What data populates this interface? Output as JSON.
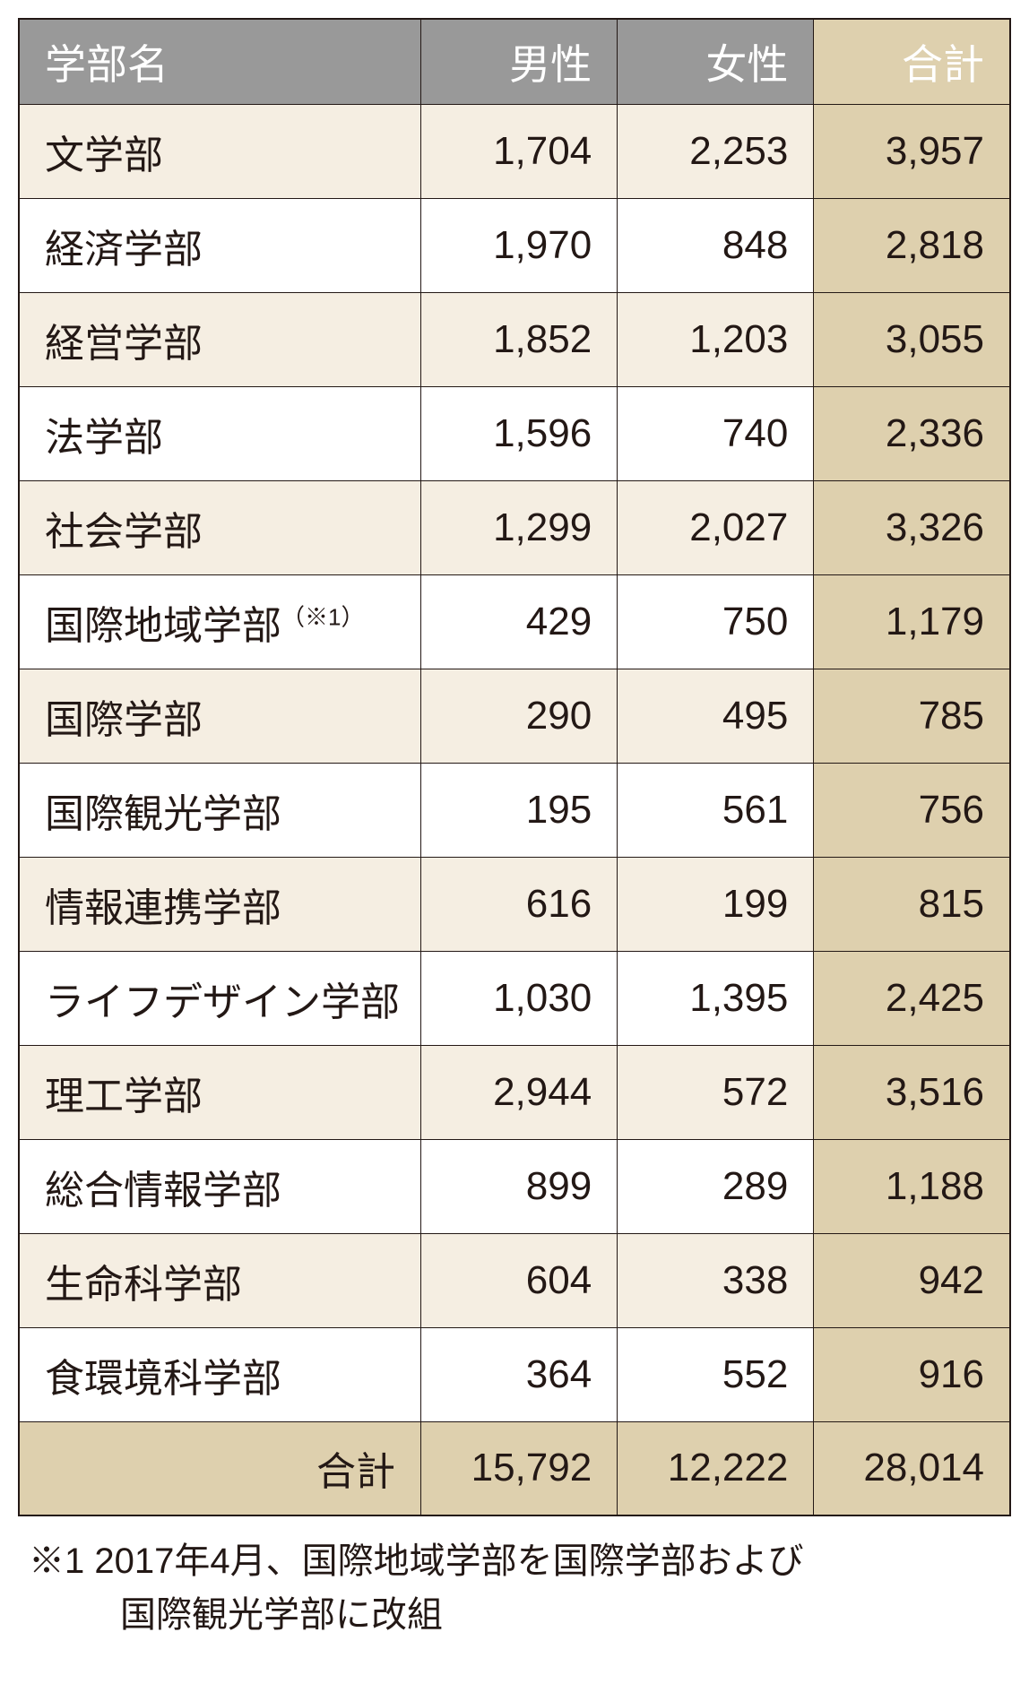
{
  "table": {
    "headers": {
      "name": "学部名",
      "male": "男性",
      "female": "女性",
      "total": "合計"
    },
    "rows": [
      {
        "name": "文学部",
        "male": "1,704",
        "female": "2,253",
        "total": "3,957",
        "note": ""
      },
      {
        "name": "経済学部",
        "male": "1,970",
        "female": "848",
        "total": "2,818",
        "note": ""
      },
      {
        "name": "経営学部",
        "male": "1,852",
        "female": "1,203",
        "total": "3,055",
        "note": ""
      },
      {
        "name": "法学部",
        "male": "1,596",
        "female": "740",
        "total": "2,336",
        "note": ""
      },
      {
        "name": "社会学部",
        "male": "1,299",
        "female": "2,027",
        "total": "3,326",
        "note": ""
      },
      {
        "name": "国際地域学部",
        "male": "429",
        "female": "750",
        "total": "1,179",
        "note": "（※1）"
      },
      {
        "name": "国際学部",
        "male": "290",
        "female": "495",
        "total": "785",
        "note": ""
      },
      {
        "name": "国際観光学部",
        "male": "195",
        "female": "561",
        "total": "756",
        "note": ""
      },
      {
        "name": "情報連携学部",
        "male": "616",
        "female": "199",
        "total": "815",
        "note": ""
      },
      {
        "name": "ライフデザイン学部",
        "male": "1,030",
        "female": "1,395",
        "total": "2,425",
        "note": ""
      },
      {
        "name": "理工学部",
        "male": "2,944",
        "female": "572",
        "total": "3,516",
        "note": ""
      },
      {
        "name": "総合情報学部",
        "male": "899",
        "female": "289",
        "total": "1,188",
        "note": ""
      },
      {
        "name": "生命科学部",
        "male": "604",
        "female": "338",
        "total": "942",
        "note": ""
      },
      {
        "name": "食環境科学部",
        "male": "364",
        "female": "552",
        "total": "916",
        "note": ""
      }
    ],
    "totals": {
      "label": "合計",
      "male": "15,792",
      "female": "12,222",
      "total": "28,014"
    }
  },
  "footnote": {
    "line1": "※1 2017年4月、国際地域学部を国際学部および",
    "line2": "国際観光学部に改組"
  },
  "styling": {
    "header_bg": "#999999",
    "header_text": "#ffffff",
    "row_odd_bg": "#f5eee2",
    "row_even_bg": "#ffffff",
    "total_col_bg": "#ded0ae",
    "total_row_bg": "#ded0ae",
    "border_color": "#231815",
    "text_color": "#231815",
    "font_size_body": 44,
    "font_size_header": 46,
    "font_size_footnote": 40,
    "font_size_superscript": 26
  }
}
